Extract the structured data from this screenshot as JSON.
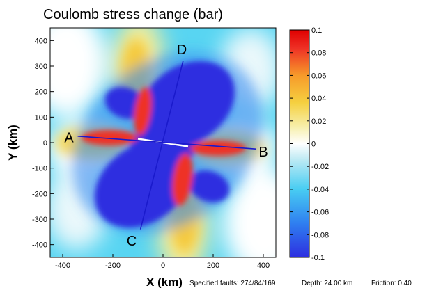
{
  "chart_data": {
    "type": "heatmap",
    "title": "Coulomb stress change (bar)",
    "xlabel": "X (km)",
    "ylabel": "Y (km)",
    "xlim": [
      -450,
      450
    ],
    "ylim": [
      -450,
      450
    ],
    "xticks": [
      -400,
      -200,
      0,
      200,
      400
    ],
    "xtick_labels": [
      "-400",
      "-200",
      "0",
      "200",
      "400"
    ],
    "yticks": [
      400,
      300,
      200,
      100,
      0,
      -100,
      -200,
      -300,
      -400
    ],
    "ytick_labels": [
      "400",
      "300",
      "200",
      "100",
      "0",
      "-100",
      "-200",
      "-300",
      "-400"
    ],
    "colorbar": {
      "range": [
        -0.1,
        0.1
      ],
      "ticks": [
        0.1,
        0.08,
        0.06,
        0.04,
        0.02,
        0,
        -0.02,
        -0.04,
        -0.06,
        -0.08,
        -0.1
      ],
      "tick_labels": [
        "0.1",
        "0.08",
        "0.06",
        "0.04",
        "0.02",
        "0",
        "-0.02",
        "-0.04",
        "-0.06",
        "-0.08",
        "-0.1"
      ],
      "colors": [
        "#2d2ee0",
        "#2f7ff0",
        "#48cdf2",
        "#bdeaf4",
        "#ffffff",
        "#f7f0b0",
        "#f5d040",
        "#f79a2a",
        "#ee3025",
        "#e00000"
      ]
    },
    "fault": {
      "x1": -100,
      "y1": 15,
      "x2": 100,
      "y2": -15,
      "color": "#ffffff"
    },
    "profiles": [
      {
        "name": "A-B",
        "start_label": "A",
        "end_label": "B",
        "x1": -340,
        "y1": 25,
        "x2": 370,
        "y2": -25,
        "color": "#1a1acc"
      },
      {
        "name": "C-D",
        "start_label": "C",
        "end_label": "D",
        "x1": -90,
        "y1": -340,
        "x2": 80,
        "y2": 320,
        "color": "#1a1acc"
      }
    ],
    "point_labels": [
      {
        "text": "A",
        "x": -375,
        "y": 20
      },
      {
        "text": "B",
        "x": 400,
        "y": -35
      },
      {
        "text": "C",
        "x": -125,
        "y": -385
      },
      {
        "text": "D",
        "x": 75,
        "y": 365
      }
    ]
  },
  "footer": {
    "faults": "Specified faults: 274/84/169",
    "depth": "Depth: 24.00 km",
    "friction": "Friction: 0.40"
  }
}
